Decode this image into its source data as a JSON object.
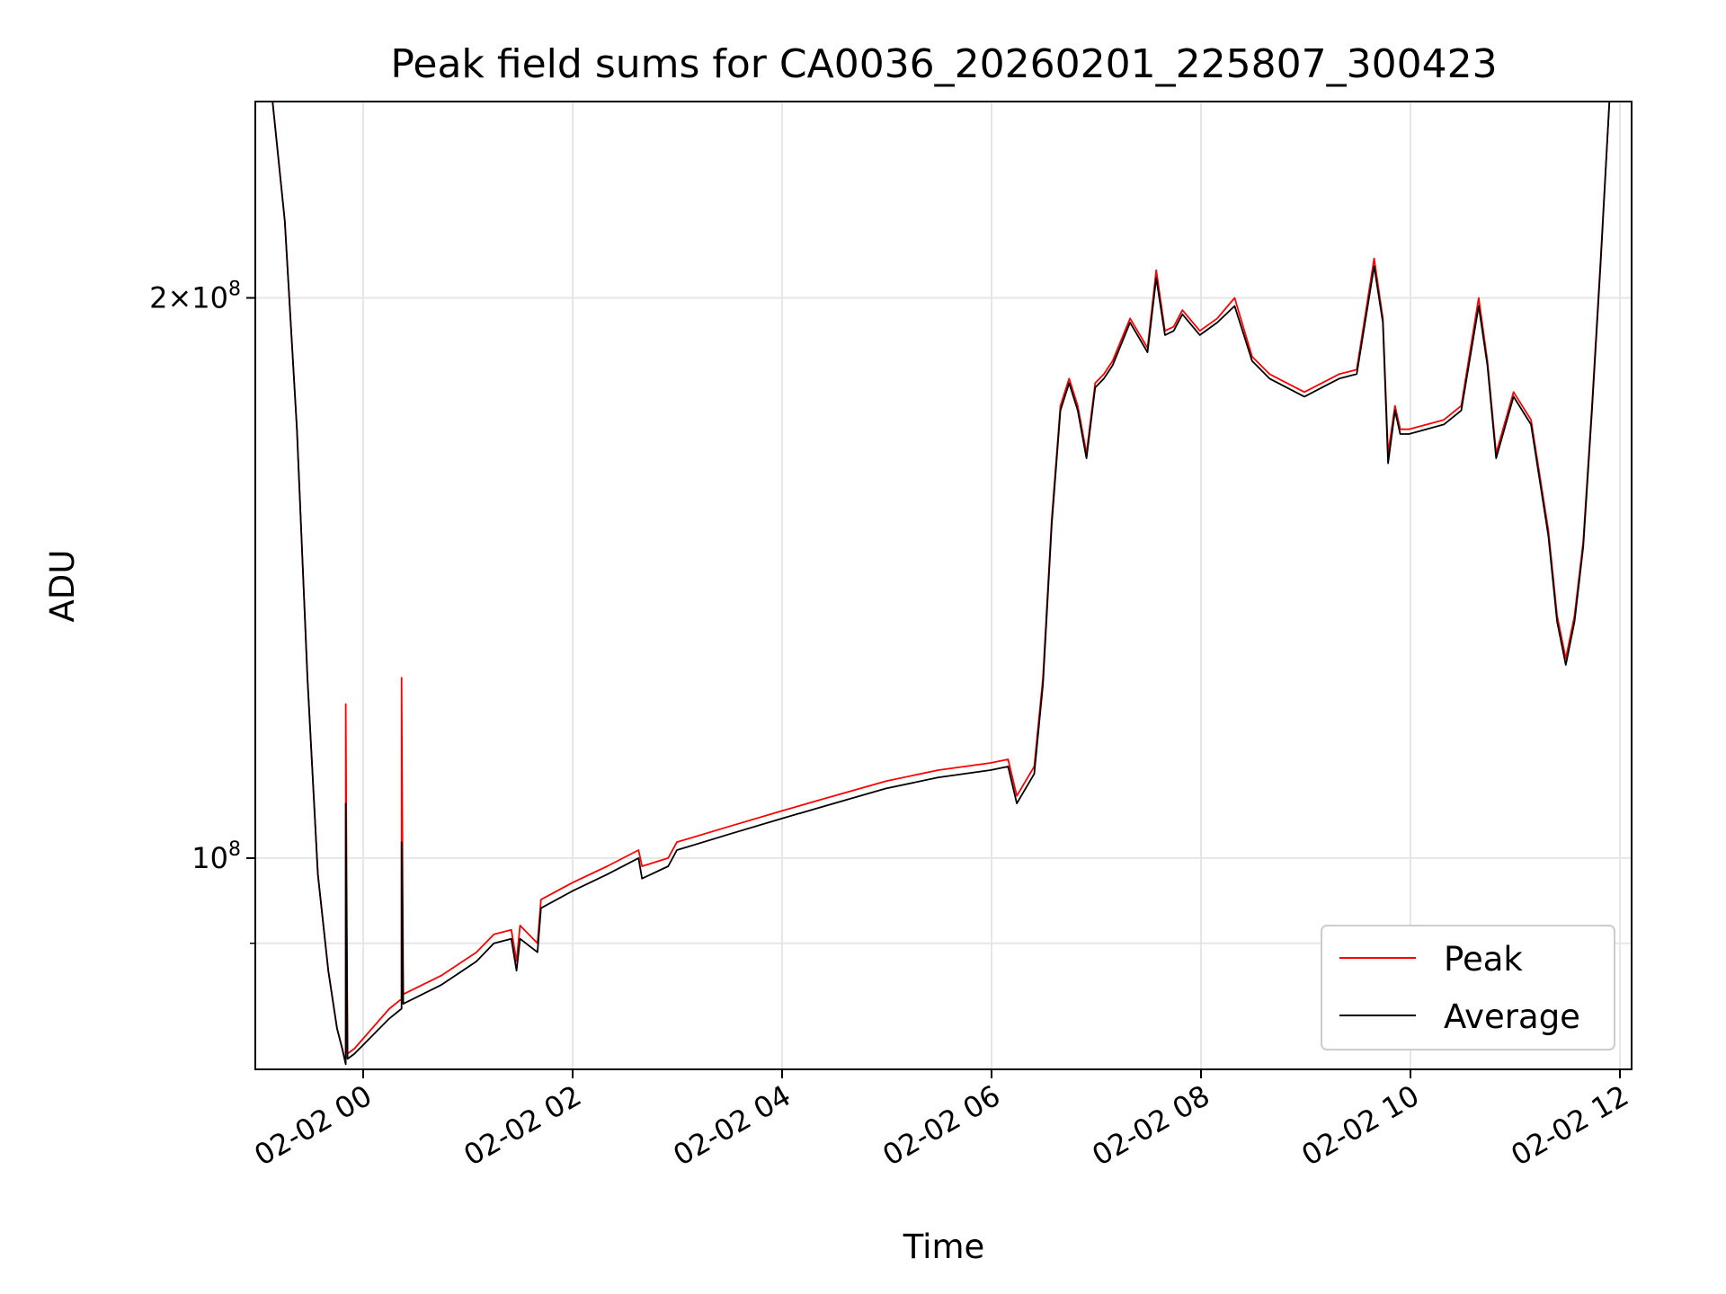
{
  "chart_data": {
    "type": "line",
    "title": "Peak field sums for CA0036_20260201_225807_300423",
    "xlabel": "Time",
    "ylabel": "ADU",
    "x_range": [
      "2026-02-01 22:58",
      "2026-02-02 12:00"
    ],
    "y_scale": "log",
    "ylim": [
      77000000,
      255000000
    ],
    "y_ticks": [
      {
        "value": 100000000,
        "label": "10^8"
      },
      {
        "value": 200000000,
        "label": "2×10^8"
      }
    ],
    "y_minor_gridlines": [
      90000000
    ],
    "x_ticks": [
      "02-02 00",
      "02-02 02",
      "02-02 04",
      "02-02 06",
      "02-02 08",
      "02-02 10",
      "02-02 12"
    ],
    "grid": true,
    "legend_position": "lower-right",
    "colors": {
      "peak": "#ff0000",
      "average": "#000000"
    },
    "series": [
      {
        "name": "Peak",
        "x": [
          "2026-02-01 23:08",
          "2026-02-01 23:15",
          "2026-02-01 23:22",
          "2026-02-01 23:28",
          "2026-02-01 23:34",
          "2026-02-01 23:40",
          "2026-02-01 23:45",
          "2026-02-01 23:48",
          "2026-02-01 23:50",
          "2026-02-01 23:50",
          "2026-02-01 23:51",
          "2026-02-01 23:55",
          "2026-02-02 00:15",
          "2026-02-02 00:22",
          "2026-02-02 00:22",
          "2026-02-02 00:23",
          "2026-02-02 00:45",
          "2026-02-02 01:05",
          "2026-02-02 01:15",
          "2026-02-02 01:25",
          "2026-02-02 01:28",
          "2026-02-02 01:30",
          "2026-02-02 01:40",
          "2026-02-02 01:42",
          "2026-02-02 02:00",
          "2026-02-02 02:20",
          "2026-02-02 02:38",
          "2026-02-02 02:40",
          "2026-02-02 02:55",
          "2026-02-02 03:00",
          "2026-02-02 03:30",
          "2026-02-02 04:00",
          "2026-02-02 04:30",
          "2026-02-02 05:00",
          "2026-02-02 05:30",
          "2026-02-02 06:00",
          "2026-02-02 06:10",
          "2026-02-02 06:15",
          "2026-02-02 06:25",
          "2026-02-02 06:30",
          "2026-02-02 06:35",
          "2026-02-02 06:40",
          "2026-02-02 06:45",
          "2026-02-02 06:50",
          "2026-02-02 06:55",
          "2026-02-02 07:00",
          "2026-02-02 07:05",
          "2026-02-02 07:10",
          "2026-02-02 07:20",
          "2026-02-02 07:30",
          "2026-02-02 07:35",
          "2026-02-02 07:40",
          "2026-02-02 07:45",
          "2026-02-02 07:50",
          "2026-02-02 08:00",
          "2026-02-02 08:10",
          "2026-02-02 08:20",
          "2026-02-02 08:30",
          "2026-02-02 08:35",
          "2026-02-02 08:40",
          "2026-02-02 09:00",
          "2026-02-02 09:10",
          "2026-02-02 09:20",
          "2026-02-02 09:30",
          "2026-02-02 09:40",
          "2026-02-02 09:45",
          "2026-02-02 09:48",
          "2026-02-02 09:52",
          "2026-02-02 09:55",
          "2026-02-02 10:00",
          "2026-02-02 10:20",
          "2026-02-02 10:30",
          "2026-02-02 10:40",
          "2026-02-02 10:45",
          "2026-02-02 10:50",
          "2026-02-02 11:00",
          "2026-02-02 11:10",
          "2026-02-02 11:20",
          "2026-02-02 11:25",
          "2026-02-02 11:30",
          "2026-02-02 11:35",
          "2026-02-02 11:40",
          "2026-02-02 11:45",
          "2026-02-02 11:50",
          "2026-02-02 11:55"
        ],
        "y": [
          255000000,
          220000000,
          170000000,
          125000000,
          98000000,
          87000000,
          81000000,
          79000000,
          77500000,
          121000000,
          78500000,
          79000000,
          83000000,
          84000000,
          125000000,
          84500000,
          86500000,
          89000000,
          91000000,
          91500000,
          88000000,
          92000000,
          90000000,
          95000000,
          97000000,
          99000000,
          101000000,
          99000000,
          100000000,
          102000000,
          104000000,
          106000000,
          108000000,
          110000000,
          111500000,
          112500000,
          113000000,
          108000000,
          112000000,
          125000000,
          152000000,
          175000000,
          181000000,
          175000000,
          165000000,
          180000000,
          182000000,
          185000000,
          195000000,
          188000000,
          207000000,
          192000000,
          193000000,
          197000000,
          192000000,
          195000000,
          200000000,
          186000000,
          184000000,
          182000000,
          178000000,
          180000000,
          182000000,
          183000000,
          210000000,
          195000000,
          165000000,
          175000000,
          170000000,
          170000000,
          172000000,
          175000000,
          200000000,
          185000000,
          165000000,
          178000000,
          172000000,
          150000000,
          135000000,
          128000000,
          135000000,
          148000000,
          175000000,
          210000000,
          255000000
        ]
      },
      {
        "name": "Average",
        "x": [
          "2026-02-01 23:08",
          "2026-02-01 23:15",
          "2026-02-01 23:22",
          "2026-02-01 23:28",
          "2026-02-01 23:34",
          "2026-02-01 23:40",
          "2026-02-01 23:45",
          "2026-02-01 23:48",
          "2026-02-01 23:50",
          "2026-02-01 23:50",
          "2026-02-01 23:51",
          "2026-02-01 23:55",
          "2026-02-02 00:15",
          "2026-02-02 00:22",
          "2026-02-02 00:22",
          "2026-02-02 00:23",
          "2026-02-02 00:45",
          "2026-02-02 01:05",
          "2026-02-02 01:15",
          "2026-02-02 01:25",
          "2026-02-02 01:28",
          "2026-02-02 01:30",
          "2026-02-02 01:40",
          "2026-02-02 01:42",
          "2026-02-02 02:00",
          "2026-02-02 02:20",
          "2026-02-02 02:38",
          "2026-02-02 02:40",
          "2026-02-02 02:55",
          "2026-02-02 03:00",
          "2026-02-02 03:30",
          "2026-02-02 04:00",
          "2026-02-02 04:30",
          "2026-02-02 05:00",
          "2026-02-02 05:30",
          "2026-02-02 06:00",
          "2026-02-02 06:10",
          "2026-02-02 06:15",
          "2026-02-02 06:25",
          "2026-02-02 06:30",
          "2026-02-02 06:35",
          "2026-02-02 06:40",
          "2026-02-02 06:45",
          "2026-02-02 06:50",
          "2026-02-02 06:55",
          "2026-02-02 07:00",
          "2026-02-02 07:05",
          "2026-02-02 07:10",
          "2026-02-02 07:20",
          "2026-02-02 07:30",
          "2026-02-02 07:35",
          "2026-02-02 07:40",
          "2026-02-02 07:45",
          "2026-02-02 07:50",
          "2026-02-02 08:00",
          "2026-02-02 08:10",
          "2026-02-02 08:20",
          "2026-02-02 08:30",
          "2026-02-02 08:35",
          "2026-02-02 08:40",
          "2026-02-02 09:00",
          "2026-02-02 09:10",
          "2026-02-02 09:20",
          "2026-02-02 09:30",
          "2026-02-02 09:40",
          "2026-02-02 09:45",
          "2026-02-02 09:48",
          "2026-02-02 09:52",
          "2026-02-02 09:55",
          "2026-02-02 10:00",
          "2026-02-02 10:20",
          "2026-02-02 10:30",
          "2026-02-02 10:40",
          "2026-02-02 10:45",
          "2026-02-02 10:50",
          "2026-02-02 11:00",
          "2026-02-02 11:10",
          "2026-02-02 11:20",
          "2026-02-02 11:25",
          "2026-02-02 11:30",
          "2026-02-02 11:35",
          "2026-02-02 11:40",
          "2026-02-02 11:45",
          "2026-02-02 11:50",
          "2026-02-02 11:55"
        ],
        "y": [
          255000000,
          220000000,
          170000000,
          125000000,
          98000000,
          87000000,
          81000000,
          79000000,
          77500000,
          107000000,
          78000000,
          78500000,
          82000000,
          83000000,
          102000000,
          83500000,
          85500000,
          88000000,
          90000000,
          90500000,
          87000000,
          90500000,
          89000000,
          94000000,
          96000000,
          98000000,
          100000000,
          97500000,
          99000000,
          101000000,
          103000000,
          105000000,
          107000000,
          109000000,
          110500000,
          111500000,
          112000000,
          107000000,
          111000000,
          124000000,
          151000000,
          174000000,
          180000000,
          174000000,
          164000000,
          179000000,
          181000000,
          184000000,
          194000000,
          187000000,
          205000000,
          191000000,
          192000000,
          196000000,
          191000000,
          194000000,
          198000000,
          185000000,
          183000000,
          181000000,
          177000000,
          179000000,
          181000000,
          182000000,
          208000000,
          194000000,
          163000000,
          174000000,
          169000000,
          169000000,
          171000000,
          174000000,
          198000000,
          184000000,
          164000000,
          177000000,
          171000000,
          149000000,
          134000000,
          127000000,
          134000000,
          147000000,
          174000000,
          209000000,
          255000000
        ]
      }
    ]
  }
}
